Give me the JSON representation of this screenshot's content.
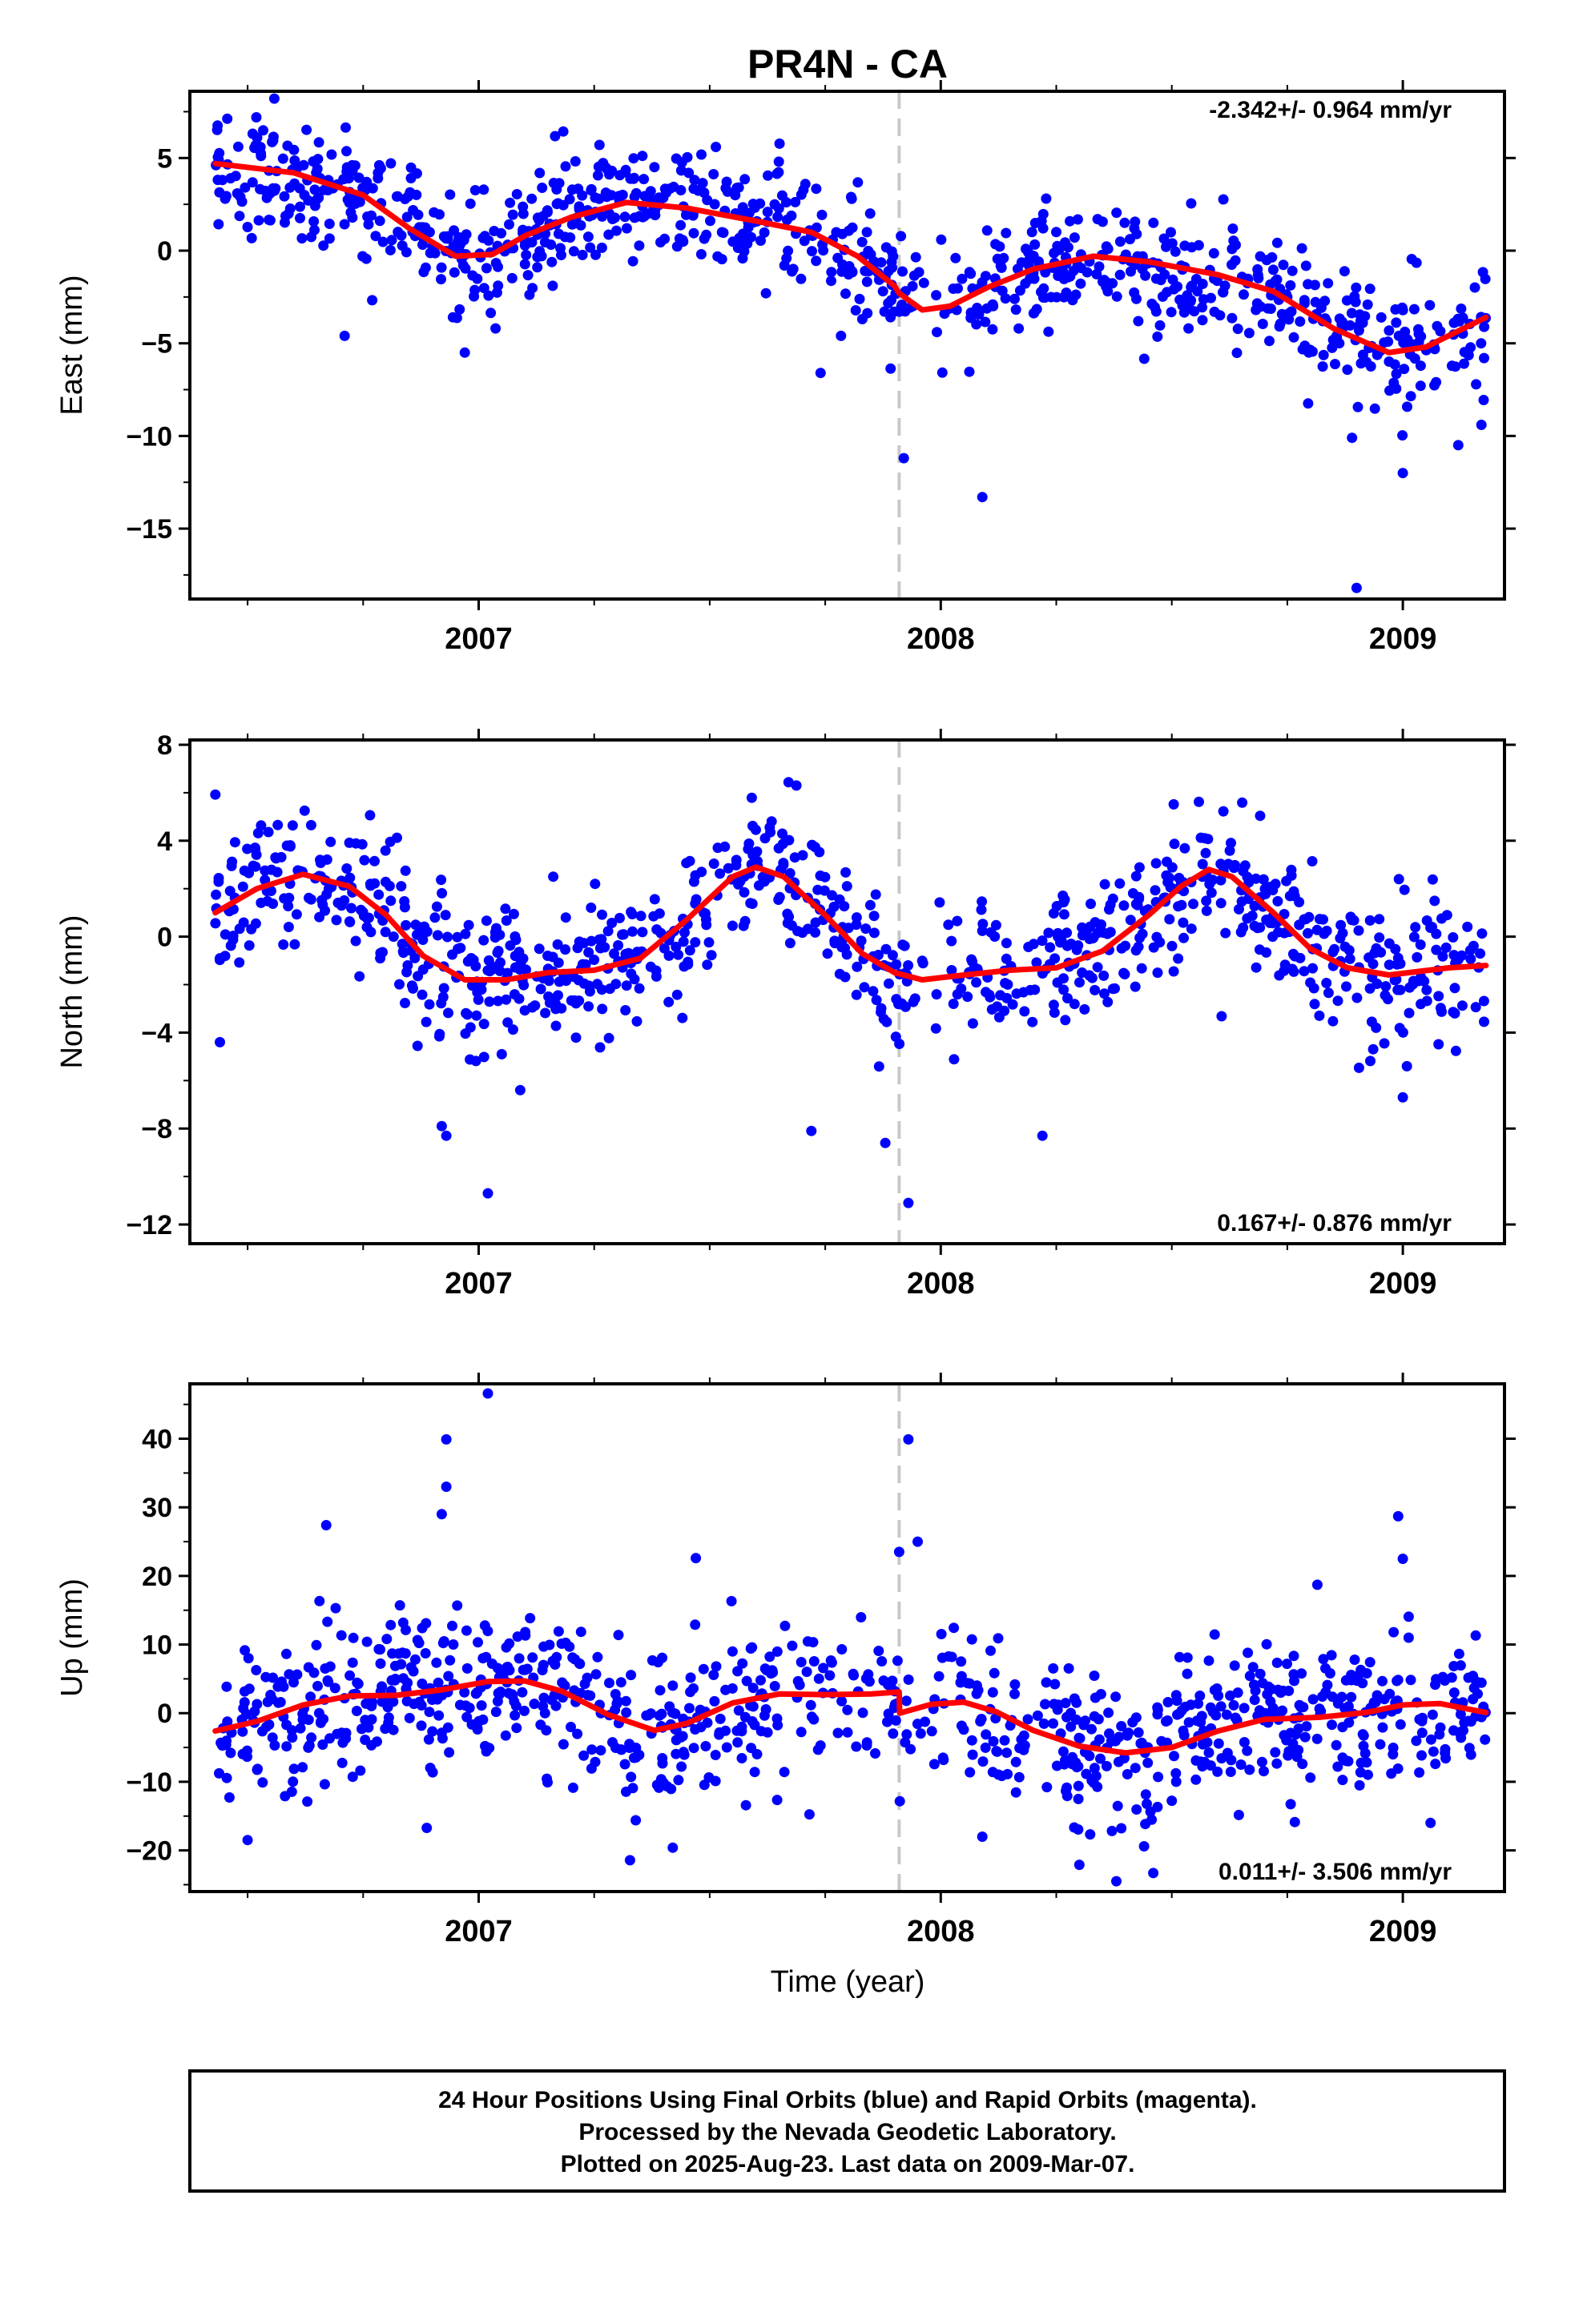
{
  "title": "PR4N - CA",
  "colors": {
    "points": "#0000ff",
    "fit": "#ff0000",
    "break_line": "#c8c8c8",
    "frame": "#000000"
  },
  "xlabel": "Time (year)",
  "footer": {
    "line1": "24 Hour Positions Using Final Orbits (blue) and Rapid Orbits (magenta).",
    "line2": "Processed by the Nevada Geodetic Laboratory.",
    "line3": "Plotted on 2025-Aug-23. Last data on 2009-Mar-07."
  },
  "chart_data": [
    {
      "type": "scatter",
      "panel": "east",
      "ylabel": "East (mm)",
      "rate_text": "-2.342+/- 0.964 mm/yr",
      "xlim": [
        2006.375,
        2009.22
      ],
      "ylim": [
        -18.8,
        8.6
      ],
      "x_ticks": [
        "2007",
        "2008",
        "2009"
      ],
      "y_ticks": [
        5,
        0,
        -5,
        -10,
        -15
      ],
      "break_x": 2007.91,
      "series": [
        {
          "role": "observations",
          "x_start": 2006.43,
          "x_end": 2009.18,
          "n_points": 950,
          "outliers": [
            [
              2007.92,
              -11.2
            ],
            [
              2008.09,
              -13.3
            ],
            [
              2008.9,
              -18.2
            ],
            [
              2009.0,
              -12.0
            ],
            [
              2008.89,
              -10.1
            ],
            [
              2009.17,
              -9.4
            ],
            [
              2009.12,
              -10.5
            ],
            [
              2007.74,
              -6.6
            ],
            [
              2006.97,
              -5.5
            ],
            [
              2006.71,
              -4.6
            ]
          ]
        },
        {
          "role": "model",
          "knots": [
            [
              2006.43,
              4.7
            ],
            [
              2006.6,
              4.2
            ],
            [
              2006.75,
              3.0
            ],
            [
              2006.85,
              1.2
            ],
            [
              2006.95,
              -0.3
            ],
            [
              2007.03,
              -0.2
            ],
            [
              2007.1,
              0.8
            ],
            [
              2007.2,
              1.8
            ],
            [
              2007.32,
              2.6
            ],
            [
              2007.45,
              2.3
            ],
            [
              2007.6,
              1.6
            ],
            [
              2007.72,
              1.0
            ],
            [
              2007.82,
              -0.3
            ],
            [
              2007.9,
              -1.9
            ],
            [
              2007.91,
              -2.3
            ],
            [
              2007.96,
              -3.2
            ],
            [
              2008.02,
              -3.0
            ],
            [
              2008.1,
              -2.0
            ],
            [
              2008.2,
              -1.0
            ],
            [
              2008.33,
              -0.3
            ],
            [
              2008.45,
              -0.6
            ],
            [
              2008.6,
              -1.3
            ],
            [
              2008.72,
              -2.2
            ],
            [
              2008.85,
              -4.2
            ],
            [
              2008.97,
              -5.5
            ],
            [
              2009.05,
              -5.2
            ],
            [
              2009.18,
              -3.6
            ]
          ]
        }
      ]
    },
    {
      "type": "scatter",
      "panel": "north",
      "ylabel": "North (mm)",
      "rate_text": "0.167+/- 0.876 mm/yr",
      "xlim": [
        2006.375,
        2009.22
      ],
      "ylim": [
        -12.8,
        8.2
      ],
      "x_ticks": [
        "2007",
        "2008",
        "2009"
      ],
      "y_ticks": [
        8,
        4,
        0,
        -4,
        -8,
        -12
      ],
      "break_x": 2007.91,
      "series": [
        {
          "role": "observations",
          "x_start": 2006.43,
          "x_end": 2009.18,
          "n_points": 950,
          "outliers": [
            [
              2007.02,
              -10.7
            ],
            [
              2007.93,
              -11.1
            ],
            [
              2006.93,
              -8.3
            ],
            [
              2006.92,
              -7.9
            ],
            [
              2007.88,
              -8.6
            ],
            [
              2007.72,
              -8.1
            ],
            [
              2008.22,
              -8.3
            ],
            [
              2007.05,
              -4.9
            ],
            [
              2009.0,
              -6.7
            ],
            [
              2007.09,
              -6.4
            ],
            [
              2006.44,
              -4.4
            ]
          ]
        },
        {
          "role": "model",
          "knots": [
            [
              2006.43,
              1.0
            ],
            [
              2006.52,
              2.0
            ],
            [
              2006.62,
              2.6
            ],
            [
              2006.72,
              2.1
            ],
            [
              2006.8,
              0.9
            ],
            [
              2006.88,
              -0.8
            ],
            [
              2006.97,
              -1.8
            ],
            [
              2007.06,
              -1.8
            ],
            [
              2007.15,
              -1.5
            ],
            [
              2007.25,
              -1.4
            ],
            [
              2007.35,
              -0.9
            ],
            [
              2007.45,
              0.7
            ],
            [
              2007.55,
              2.5
            ],
            [
              2007.6,
              2.9
            ],
            [
              2007.66,
              2.5
            ],
            [
              2007.75,
              0.9
            ],
            [
              2007.83,
              -0.7
            ],
            [
              2007.9,
              -1.5
            ],
            [
              2007.96,
              -1.8
            ],
            [
              2008.05,
              -1.6
            ],
            [
              2008.15,
              -1.4
            ],
            [
              2008.25,
              -1.3
            ],
            [
              2008.35,
              -0.6
            ],
            [
              2008.45,
              0.9
            ],
            [
              2008.52,
              2.1
            ],
            [
              2008.58,
              2.8
            ],
            [
              2008.63,
              2.5
            ],
            [
              2008.72,
              1.0
            ],
            [
              2008.8,
              -0.5
            ],
            [
              2008.88,
              -1.3
            ],
            [
              2008.97,
              -1.6
            ],
            [
              2009.1,
              -1.3
            ],
            [
              2009.18,
              -1.2
            ]
          ]
        }
      ]
    },
    {
      "type": "scatter",
      "panel": "up",
      "ylabel": "Up (mm)",
      "rate_text": "0.011+/- 3.506 mm/yr",
      "xlim": [
        2006.375,
        2009.22
      ],
      "ylim": [
        -26,
        48
      ],
      "x_ticks": [
        "2007",
        "2008",
        "2009"
      ],
      "y_ticks": [
        40,
        30,
        20,
        10,
        0,
        -10,
        -20
      ],
      "break_x": 2007.91,
      "series": [
        {
          "role": "observations",
          "x_start": 2006.43,
          "x_end": 2009.18,
          "n_points": 950,
          "outliers": [
            [
              2007.02,
              46.6
            ],
            [
              2006.93,
              39.9
            ],
            [
              2006.93,
              33.0
            ],
            [
              2006.92,
              29.0
            ],
            [
              2007.93,
              39.9
            ],
            [
              2007.95,
              25.0
            ],
            [
              2007.91,
              23.5
            ],
            [
              2006.67,
              27.4
            ],
            [
              2008.99,
              28.7
            ],
            [
              2009.0,
              22.5
            ],
            [
              2007.47,
              22.6
            ],
            [
              2008.3,
              -22.1
            ],
            [
              2008.38,
              -24.5
            ],
            [
              2008.46,
              -23.3
            ],
            [
              2008.44,
              -19.4
            ],
            [
              2006.5,
              -18.5
            ],
            [
              2007.42,
              -19.6
            ],
            [
              2008.09,
              -18.0
            ],
            [
              2009.06,
              -16.0
            ]
          ]
        },
        {
          "role": "model",
          "knots": [
            [
              2006.43,
              -2.6
            ],
            [
              2006.52,
              -1.2
            ],
            [
              2006.62,
              1.2
            ],
            [
              2006.72,
              2.5
            ],
            [
              2006.82,
              2.6
            ],
            [
              2006.92,
              3.4
            ],
            [
              2007.02,
              4.6
            ],
            [
              2007.1,
              4.7
            ],
            [
              2007.18,
              3.2
            ],
            [
              2007.28,
              -0.2
            ],
            [
              2007.38,
              -2.5
            ],
            [
              2007.45,
              -1.5
            ],
            [
              2007.55,
              1.5
            ],
            [
              2007.65,
              2.8
            ],
            [
              2007.75,
              2.7
            ],
            [
              2007.85,
              2.8
            ],
            [
              2007.91,
              3.1
            ],
            [
              2007.911,
              0.0
            ],
            [
              2007.98,
              1.3
            ],
            [
              2008.05,
              1.6
            ],
            [
              2008.12,
              0.2
            ],
            [
              2008.2,
              -2.5
            ],
            [
              2008.3,
              -4.8
            ],
            [
              2008.4,
              -5.8
            ],
            [
              2008.5,
              -5.0
            ],
            [
              2008.6,
              -2.6
            ],
            [
              2008.7,
              -0.9
            ],
            [
              2008.82,
              -0.6
            ],
            [
              2008.92,
              0.1
            ],
            [
              2009.0,
              1.2
            ],
            [
              2009.08,
              1.4
            ],
            [
              2009.18,
              0.1
            ]
          ]
        }
      ]
    }
  ]
}
